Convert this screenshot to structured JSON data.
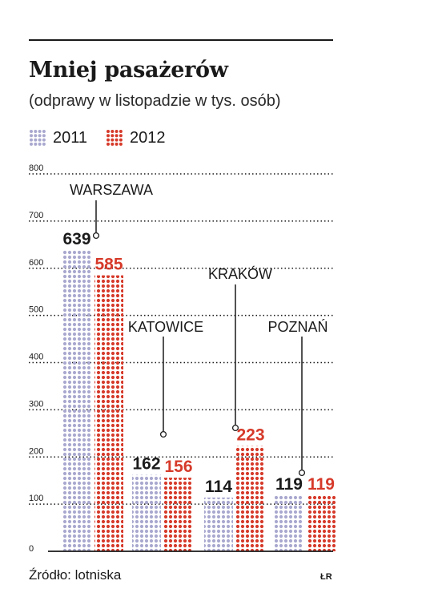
{
  "title": "Mniej pasażerów",
  "subtitle": "(odprawy w listopadzie w tys. osób)",
  "legend": [
    {
      "label": "2011",
      "color": "#a9a8cf"
    },
    {
      "label": "2012",
      "color": "#d63a2a"
    }
  ],
  "source": "Źródło: lotniska",
  "signature": "ŁR",
  "chart_data": {
    "type": "bar",
    "title": "Mniej pasażerów",
    "subtitle": "(odprawy w listopadzie w tys. osób)",
    "categories": [
      "WARSZAWA",
      "KATOWICE",
      "KRAKÓW",
      "POZNAŃ"
    ],
    "series": [
      {
        "name": "2011",
        "values": [
          639,
          162,
          114,
          119
        ],
        "color": "#a9a8cf",
        "label_color": "#1a1a1a"
      },
      {
        "name": "2012",
        "values": [
          585,
          156,
          223,
          119
        ],
        "color": "#d63a2a",
        "label_color": "#d63a2a"
      }
    ],
    "y_ticks": [
      0,
      100,
      200,
      300,
      400,
      500,
      600,
      700,
      800
    ],
    "ylim": [
      0,
      800
    ],
    "xlabel": "",
    "ylabel": "",
    "grid": true,
    "legend_position": "top-left"
  }
}
